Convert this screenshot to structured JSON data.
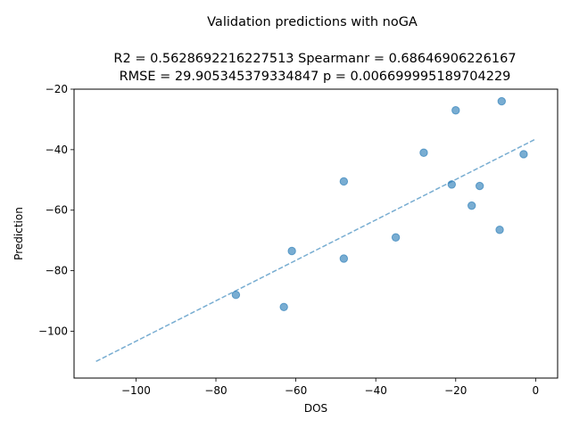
{
  "chart_data": {
    "type": "scatter",
    "suptitle": "Validation predictions with noGA",
    "title_lines": [
      "R2 = 0.5628692216227513 Spearmanr = 0.68646906226167",
      "RMSE = 29.905345379334847 p = 0.006699995189704229"
    ],
    "xlabel": "DOS",
    "ylabel": "Prediction",
    "xlim": [
      -115.5,
      5.5
    ],
    "ylim": [
      -115.5,
      -20
    ],
    "xticks": [
      -100,
      -80,
      -60,
      -40,
      -20,
      0
    ],
    "xtick_labels": [
      "−100",
      "−80",
      "−60",
      "−40",
      "−20",
      "0"
    ],
    "yticks": [
      -100,
      -80,
      -60,
      -40,
      -20
    ],
    "ytick_labels": [
      "−100",
      "−80",
      "−60",
      "−40",
      "−20"
    ],
    "points": [
      {
        "x": -8.5,
        "y": -24.0
      },
      {
        "x": -20.0,
        "y": -27.0
      },
      {
        "x": -28.0,
        "y": -41.0
      },
      {
        "x": -3.0,
        "y": -41.5
      },
      {
        "x": -48.0,
        "y": -50.5
      },
      {
        "x": -21.0,
        "y": -51.5
      },
      {
        "x": -14.0,
        "y": -52.0
      },
      {
        "x": -16.0,
        "y": -58.5
      },
      {
        "x": -9.0,
        "y": -66.5
      },
      {
        "x": -35.0,
        "y": -69.0
      },
      {
        "x": -61.0,
        "y": -73.5
      },
      {
        "x": -48.0,
        "y": -76.0
      },
      {
        "x": -75.0,
        "y": -88.0
      },
      {
        "x": -63.0,
        "y": -92.0
      }
    ],
    "fit_line": {
      "x": [
        -110,
        0
      ],
      "y": [
        -110.0,
        -36.5
      ],
      "style": "dashed"
    },
    "point_color": "#1f77b4",
    "line_color": "#1f77b4",
    "grid": false,
    "legend": false
  }
}
